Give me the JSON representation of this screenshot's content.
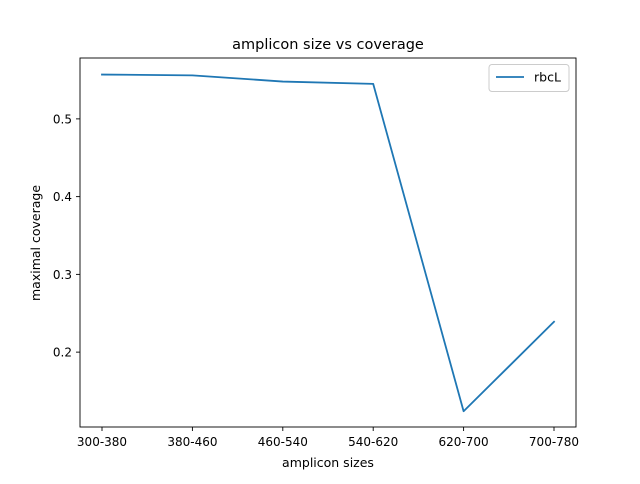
{
  "chart_data": {
    "type": "line",
    "title": "amplicon size vs coverage",
    "xlabel": "amplicon sizes",
    "ylabel": "maximal coverage",
    "categories": [
      "300-380",
      "380-460",
      "460-540",
      "540-620",
      "620-700",
      "700-780"
    ],
    "series": [
      {
        "name": "rbcL",
        "color": "#1f77b4",
        "values": [
          0.557,
          0.556,
          0.548,
          0.545,
          0.124,
          0.239
        ]
      }
    ],
    "ylim": [
      0.1037,
      0.5783
    ],
    "yticks": [
      0.2,
      0.3,
      0.4,
      0.5
    ],
    "ytick_labels": [
      "0.2",
      "0.3",
      "0.4",
      "0.5"
    ],
    "grid": false,
    "legend": "top-right"
  }
}
